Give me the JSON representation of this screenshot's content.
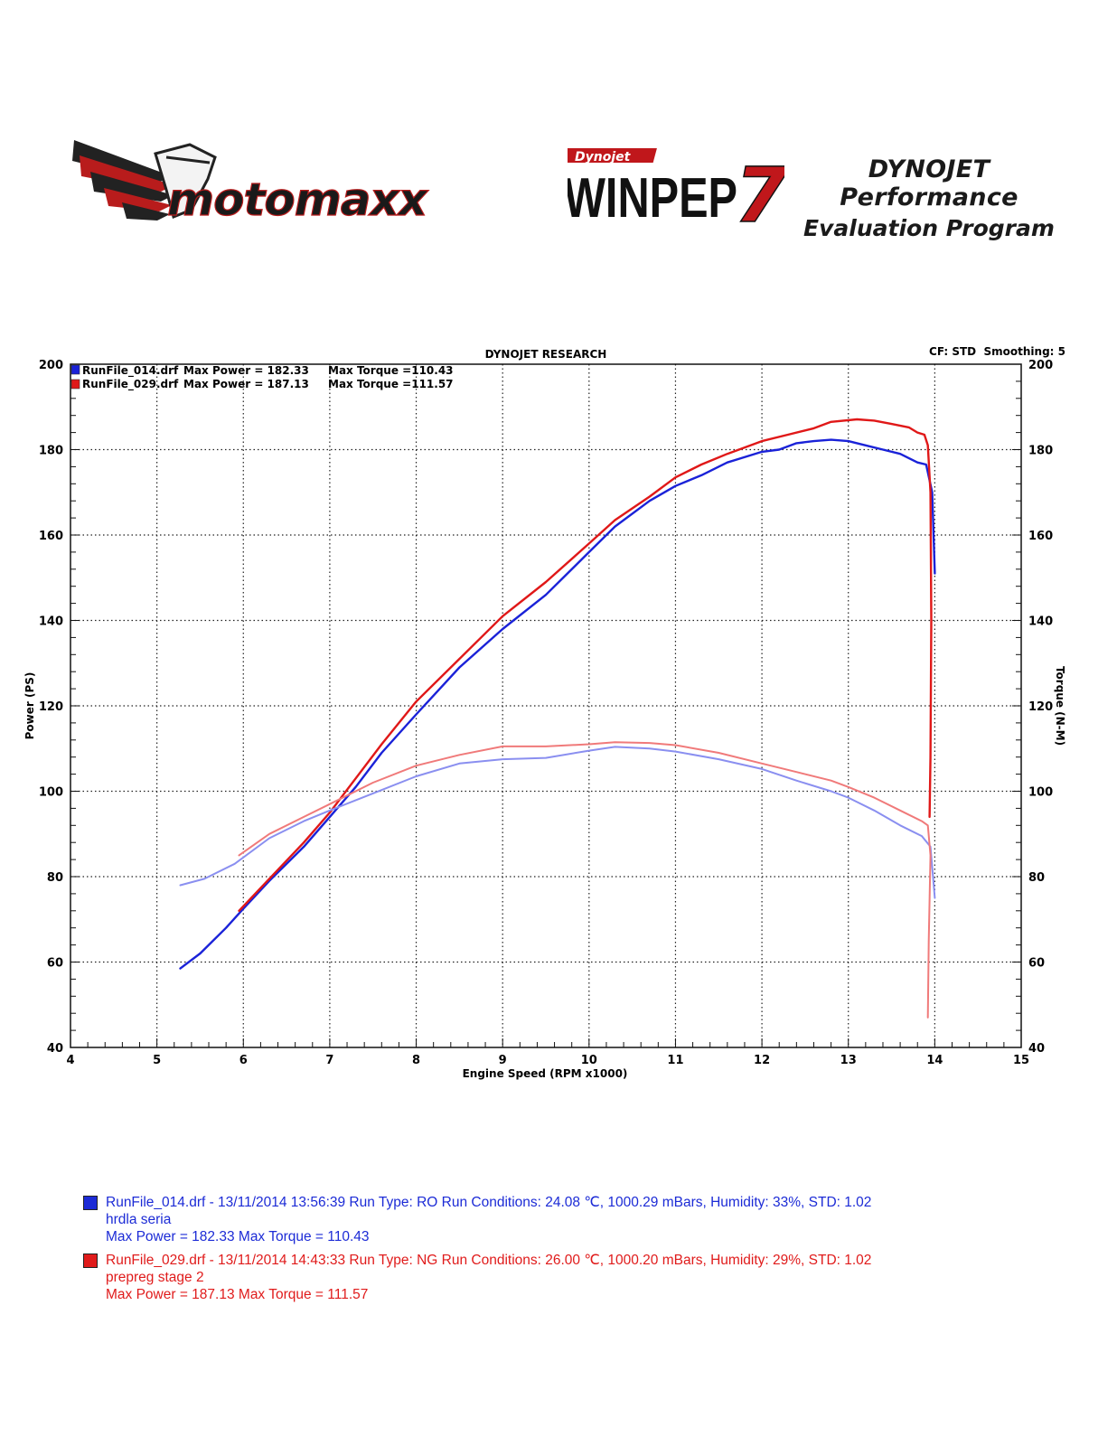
{
  "header": {
    "left_logo_text": "motomaxx",
    "right_logo_badge": "Dynojet",
    "right_logo_text": "WINPEP",
    "right_logo_number": "7",
    "program_line1": "DYNOJET Performance",
    "program_line2": "Evaluation Program"
  },
  "chart_meta": {
    "left_legend": [
      {
        "file": "RunFile_014.drf",
        "power_label": "Max Power = 182.33",
        "torque_label": "Max Torque =110.43"
      },
      {
        "file": "RunFile_029.drf",
        "power_label": "Max Power = 187.13",
        "torque_label": "Max Torque =111.57"
      }
    ],
    "cf_label": "CF: STD  Smoothing: 5"
  },
  "chart_data": {
    "type": "line",
    "title": "DYNOJET RESEARCH",
    "xlabel": "Engine Speed (RPM x1000)",
    "ylabel": "Power (PS)",
    "y2label": "Torque (N-M)",
    "xlim": [
      4,
      15
    ],
    "ylim": [
      40,
      200
    ],
    "y2lim": [
      40,
      200
    ],
    "x_ticks": [
      "4",
      "5",
      "6",
      "7",
      "8",
      "9",
      "10",
      "11",
      "12",
      "13",
      "14",
      "15"
    ],
    "y_ticks": [
      "40",
      "60",
      "80",
      "100",
      "120",
      "140",
      "160",
      "180",
      "200"
    ],
    "y2_ticks": [
      "40",
      "60",
      "80",
      "100",
      "120",
      "140",
      "160",
      "180",
      "200"
    ],
    "grid": true,
    "series": [
      {
        "name": "RunFile_014.drf Power",
        "color": "#1a22d8",
        "axis": "left",
        "points": [
          [
            5.27,
            58.5
          ],
          [
            5.5,
            62
          ],
          [
            5.8,
            68
          ],
          [
            6.0,
            72.5
          ],
          [
            6.3,
            79
          ],
          [
            6.7,
            87
          ],
          [
            7.0,
            94
          ],
          [
            7.3,
            101
          ],
          [
            7.6,
            109
          ],
          [
            8.0,
            118
          ],
          [
            8.5,
            129
          ],
          [
            9.0,
            138
          ],
          [
            9.5,
            146
          ],
          [
            10.0,
            156
          ],
          [
            10.3,
            162
          ],
          [
            10.7,
            168
          ],
          [
            11.0,
            171.5
          ],
          [
            11.3,
            174
          ],
          [
            11.6,
            177
          ],
          [
            12.0,
            179.5
          ],
          [
            12.2,
            180
          ],
          [
            12.4,
            181.5
          ],
          [
            12.6,
            182
          ],
          [
            12.8,
            182.3
          ],
          [
            13.0,
            182
          ],
          [
            13.2,
            181
          ],
          [
            13.4,
            180
          ],
          [
            13.6,
            179
          ],
          [
            13.8,
            177
          ],
          [
            13.9,
            176.5
          ],
          [
            13.97,
            170
          ],
          [
            14.0,
            151
          ]
        ]
      },
      {
        "name": "RunFile_029.drf Power",
        "color": "#e01818",
        "axis": "left",
        "points": [
          [
            5.95,
            72
          ],
          [
            6.3,
            79.5
          ],
          [
            6.7,
            88
          ],
          [
            7.0,
            95
          ],
          [
            7.3,
            103
          ],
          [
            7.6,
            111
          ],
          [
            8.0,
            121
          ],
          [
            8.5,
            131
          ],
          [
            9.0,
            141
          ],
          [
            9.5,
            149
          ],
          [
            10.0,
            158
          ],
          [
            10.3,
            163.5
          ],
          [
            10.7,
            169
          ],
          [
            11.0,
            173.5
          ],
          [
            11.3,
            176.5
          ],
          [
            11.6,
            179
          ],
          [
            12.0,
            182
          ],
          [
            12.3,
            183.5
          ],
          [
            12.6,
            185
          ],
          [
            12.8,
            186.5
          ],
          [
            13.1,
            187.1
          ],
          [
            13.3,
            186.8
          ],
          [
            13.5,
            186
          ],
          [
            13.7,
            185.2
          ],
          [
            13.8,
            184
          ],
          [
            13.88,
            183.5
          ],
          [
            13.92,
            181
          ],
          [
            13.95,
            170
          ],
          [
            13.96,
            140
          ],
          [
            13.95,
            108
          ],
          [
            13.94,
            94
          ]
        ]
      },
      {
        "name": "RunFile_014.drf Torque",
        "color": "#8a8ff0",
        "axis": "right",
        "points": [
          [
            5.27,
            78
          ],
          [
            5.55,
            79.5
          ],
          [
            5.9,
            83
          ],
          [
            6.3,
            89
          ],
          [
            6.7,
            93
          ],
          [
            7.0,
            95.5
          ],
          [
            7.5,
            99.5
          ],
          [
            8.0,
            103.5
          ],
          [
            8.5,
            106.5
          ],
          [
            9.0,
            107.5
          ],
          [
            9.5,
            107.8
          ],
          [
            10.0,
            109.5
          ],
          [
            10.3,
            110.4
          ],
          [
            10.7,
            110
          ],
          [
            11.0,
            109.3
          ],
          [
            11.5,
            107.5
          ],
          [
            12.0,
            105.2
          ],
          [
            12.4,
            102.5
          ],
          [
            12.8,
            100
          ],
          [
            13.0,
            98.5
          ],
          [
            13.3,
            95.5
          ],
          [
            13.6,
            92
          ],
          [
            13.85,
            89.5
          ],
          [
            13.95,
            87
          ],
          [
            14.0,
            75
          ]
        ]
      },
      {
        "name": "RunFile_029.drf Torque",
        "color": "#f07a7a",
        "axis": "right",
        "points": [
          [
            5.95,
            85
          ],
          [
            6.3,
            90
          ],
          [
            6.7,
            94
          ],
          [
            7.0,
            97
          ],
          [
            7.5,
            102
          ],
          [
            8.0,
            106
          ],
          [
            8.5,
            108.5
          ],
          [
            9.0,
            110.5
          ],
          [
            9.5,
            110.5
          ],
          [
            10.0,
            111
          ],
          [
            10.3,
            111.5
          ],
          [
            10.7,
            111.3
          ],
          [
            11.0,
            110.8
          ],
          [
            11.5,
            109
          ],
          [
            12.0,
            106.5
          ],
          [
            12.4,
            104.5
          ],
          [
            12.8,
            102.5
          ],
          [
            13.0,
            101
          ],
          [
            13.3,
            98.5
          ],
          [
            13.6,
            95.5
          ],
          [
            13.85,
            93
          ],
          [
            13.92,
            92
          ],
          [
            13.95,
            85
          ],
          [
            13.93,
            65
          ],
          [
            13.92,
            47
          ]
        ]
      }
    ]
  },
  "footer_legend": [
    {
      "color": "#1c2bd6",
      "line1": "RunFile_014.drf - 13/11/2014 13:56:39  Run Type: RO  Run Conditions: 24.08 ℃, 1000.29 mBars,  Humidity:  33%, STD: 1.02",
      "line2": "hrdla seria",
      "line3": "Max Power = 182.33  Max Torque = 110.43"
    },
    {
      "color": "#e01b1b",
      "line1": "RunFile_029.drf - 13/11/2014 14:43:33  Run Type: NG  Run Conditions: 26.00 ℃, 1000.20 mBars,  Humidity:  29%, STD: 1.02",
      "line2": "prepreg stage 2",
      "line3": "Max Power = 187.13  Max Torque = 111.57"
    }
  ]
}
